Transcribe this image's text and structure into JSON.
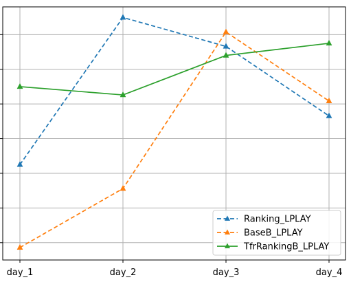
{
  "chart_data": {
    "type": "line",
    "categories": [
      "day_1",
      "day_2",
      "day_3",
      "day_4"
    ],
    "series": [
      {
        "name": "Ranking_LPLAY",
        "values": [
          0.575,
          0.9995,
          0.916,
          0.7155
        ],
        "color": "#1f77b4",
        "dash": "dashed",
        "marker": "triangle"
      },
      {
        "name": "BaseB_LPLAY",
        "values": [
          0.336,
          0.506,
          0.9575,
          0.7585
        ],
        "color": "#ff7f0e",
        "dash": "dashed",
        "marker": "triangle"
      },
      {
        "name": "TfrRankingB_LPLAY",
        "values": [
          0.8,
          0.776,
          0.89,
          0.925
        ],
        "color": "#2ca02c",
        "dash": "solid",
        "marker": "triangle"
      }
    ],
    "ylim": [
      0.3,
      1.03
    ],
    "yticks": [
      0.35,
      0.45,
      0.55,
      0.65,
      0.75,
      0.85,
      0.95
    ],
    "grid": true,
    "legend_position": "bottom-right",
    "title": "",
    "xlabel": "",
    "ylabel": ""
  }
}
